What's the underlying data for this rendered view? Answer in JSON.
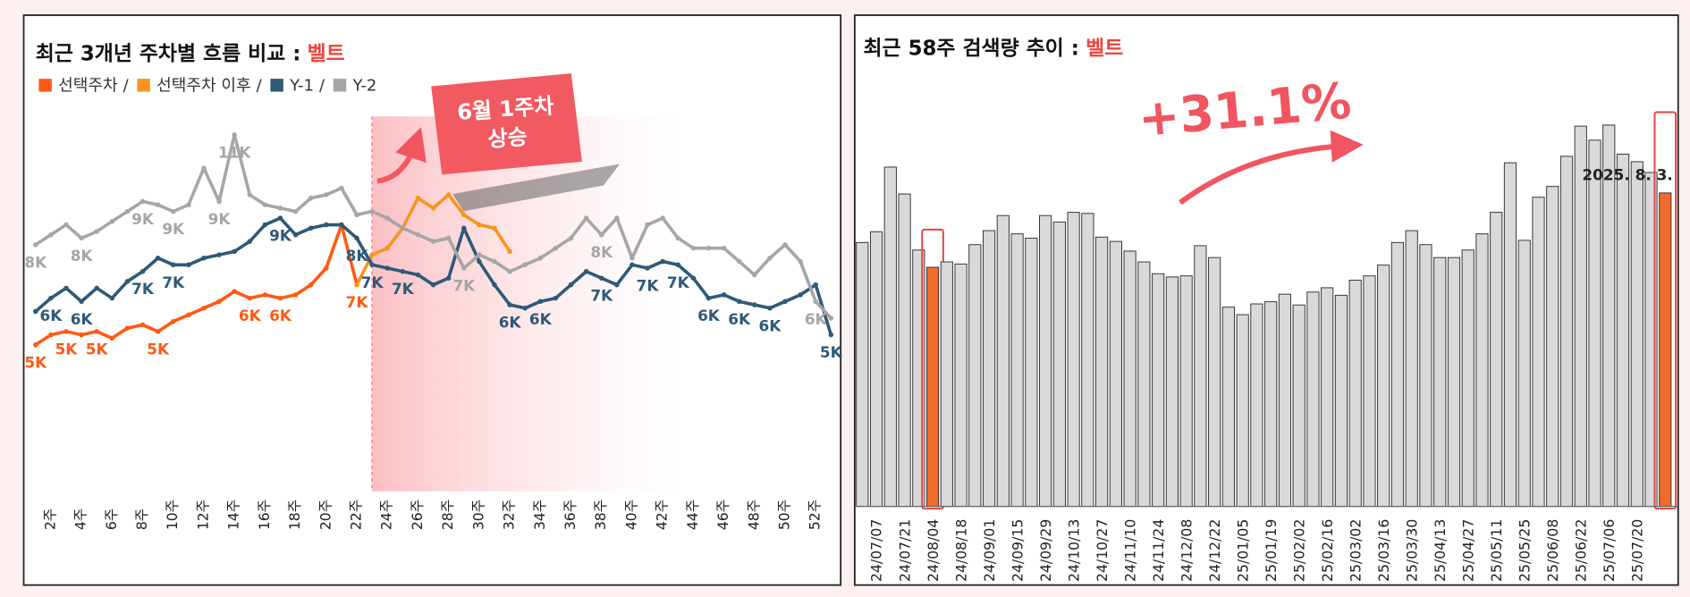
{
  "chart_data": [
    {
      "type": "line",
      "title": "최근 3개년 주차별 흐름 비교 :",
      "keyword": "벨트",
      "legend_separator": "/",
      "categories": [
        null,
        "2주",
        null,
        "4주",
        null,
        "6주",
        null,
        "8주",
        null,
        "10주",
        null,
        "12주",
        null,
        "14주",
        null,
        "16주",
        null,
        "18주",
        null,
        "20주",
        null,
        "22주",
        null,
        "24주",
        null,
        "26주",
        null,
        "28주",
        null,
        "30주",
        null,
        "32주",
        null,
        "34주",
        null,
        "36주",
        null,
        "38주",
        null,
        "40주",
        null,
        "42주",
        null,
        "44주",
        null,
        "46주",
        null,
        "48주",
        null,
        "50주",
        null,
        "52주",
        null
      ],
      "series": [
        {
          "name": "선택주차",
          "color": "#ff5a14",
          "values": [
            5000,
            5300,
            5400,
            5300,
            5400,
            5200,
            5500,
            5600,
            5400,
            5700,
            5900,
            6100,
            6300,
            6600,
            6400,
            6500,
            6400,
            6500,
            6800,
            7300,
            8600,
            6800,
            null,
            null,
            null,
            null,
            null,
            null,
            null,
            null,
            null,
            null,
            null,
            null,
            null,
            null,
            null,
            null,
            null,
            null,
            null,
            null,
            null,
            null,
            null,
            null,
            null,
            null,
            null,
            null,
            null,
            null,
            null
          ],
          "value_labels": [
            "5K",
            null,
            "5K",
            null,
            "5K",
            null,
            null,
            null,
            "5K",
            null,
            null,
            null,
            null,
            null,
            "6K",
            null,
            "6K",
            null,
            null,
            null,
            null,
            "7K",
            null,
            null,
            null,
            null,
            null,
            null,
            null,
            null,
            null,
            null,
            null,
            null,
            null,
            null,
            null,
            null,
            null,
            null,
            null,
            null,
            null,
            null,
            null,
            null,
            null,
            null,
            null,
            null,
            null,
            null,
            null
          ]
        },
        {
          "name": "선택주차 이후",
          "color": "#f7941d",
          "values": [
            null,
            null,
            null,
            null,
            null,
            null,
            null,
            null,
            null,
            null,
            null,
            null,
            null,
            null,
            null,
            null,
            null,
            null,
            null,
            null,
            null,
            6800,
            7700,
            7900,
            8500,
            9400,
            9100,
            9500,
            8900,
            8600,
            8500,
            7800,
            null,
            null,
            null,
            null,
            null,
            null,
            null,
            null,
            null,
            null,
            null,
            null,
            null,
            null,
            null,
            null,
            null,
            null,
            null,
            null,
            null
          ]
        },
        {
          "name": "Y-1",
          "color": "#2d5a78",
          "values": [
            6000,
            6400,
            6700,
            6300,
            6700,
            6400,
            6900,
            7200,
            7600,
            7400,
            7400,
            7600,
            7700,
            7800,
            8100,
            8600,
            8800,
            8300,
            8500,
            8600,
            8600,
            8200,
            7400,
            7300,
            7200,
            7100,
            6800,
            7000,
            8500,
            7500,
            6800,
            6200,
            6100,
            6300,
            6400,
            6800,
            7200,
            7000,
            6800,
            7400,
            7300,
            7500,
            7400,
            7000,
            6400,
            6500,
            6300,
            6200,
            6100,
            6300,
            6500,
            6800,
            5300
          ],
          "value_labels": [
            null,
            "6K",
            null,
            "6K",
            null,
            null,
            null,
            "7K",
            null,
            "7K",
            null,
            null,
            null,
            null,
            null,
            null,
            "9K",
            null,
            null,
            null,
            null,
            "8K",
            "7K",
            null,
            "7K",
            null,
            null,
            null,
            null,
            null,
            null,
            "6K",
            null,
            "6K",
            null,
            null,
            null,
            "7K",
            null,
            null,
            "7K",
            null,
            "7K",
            null,
            "6K",
            null,
            "6K",
            null,
            "6K",
            null,
            null,
            null,
            "5K"
          ]
        },
        {
          "name": "Y-2",
          "color": "#a6a6a6",
          "values": [
            8000,
            8300,
            8600,
            8200,
            8400,
            8700,
            9000,
            9300,
            9200,
            9000,
            9200,
            10300,
            9300,
            11300,
            9500,
            9200,
            9100,
            9000,
            9400,
            9500,
            9700,
            8900,
            9000,
            8800,
            8500,
            8300,
            8100,
            8200,
            7300,
            7700,
            7500,
            7200,
            7400,
            7600,
            7900,
            8200,
            8800,
            8300,
            8800,
            7600,
            8600,
            8800,
            8200,
            7900,
            7900,
            7900,
            7500,
            7100,
            7600,
            8000,
            7500,
            6300,
            5800
          ],
          "value_labels": [
            "8K",
            null,
            null,
            "8K",
            null,
            null,
            null,
            "9K",
            null,
            "9K",
            null,
            null,
            "9K",
            "11K",
            null,
            null,
            null,
            null,
            null,
            null,
            null,
            null,
            null,
            null,
            null,
            null,
            null,
            null,
            "7K",
            null,
            null,
            null,
            null,
            null,
            null,
            null,
            null,
            "8K",
            null,
            null,
            null,
            null,
            null,
            null,
            null,
            null,
            null,
            null,
            null,
            null,
            null,
            "6K",
            null
          ]
        }
      ],
      "annotation": [
        "6월 1주차",
        "상승"
      ]
    },
    {
      "type": "bar",
      "title": "최근 58주 검색량 추이 :",
      "keyword": "벨트",
      "categories": [
        null,
        "24/07/07",
        null,
        "24/07/21",
        null,
        "24/08/04",
        null,
        "24/08/18",
        null,
        "24/09/01",
        null,
        "24/09/15",
        null,
        "24/09/29",
        null,
        "24/10/13",
        null,
        "24/10/27",
        null,
        "24/11/10",
        null,
        "24/11/24",
        null,
        "24/12/08",
        null,
        "24/12/22",
        null,
        "25/01/05",
        null,
        "25/01/19",
        null,
        "25/02/02",
        null,
        "25/02/16",
        null,
        "25/03/02",
        null,
        "25/03/16",
        null,
        "25/03/30",
        null,
        "25/04/13",
        null,
        "25/04/27",
        null,
        "25/05/11",
        null,
        "25/05/25",
        null,
        "25/06/08",
        null,
        "25/06/22",
        null,
        "25/07/06",
        null,
        "25/07/20",
        null,
        null
      ],
      "values": [
        245,
        255,
        315,
        290,
        238,
        222,
        227,
        225,
        243,
        256,
        270,
        253,
        249,
        270,
        264,
        273,
        272,
        250,
        246,
        237,
        227,
        216,
        213,
        214,
        242,
        231,
        185,
        178,
        188,
        190,
        197,
        187,
        199,
        203,
        196,
        210,
        214,
        224,
        245,
        256,
        243,
        231,
        231,
        238,
        253,
        273,
        319,
        247,
        287,
        297,
        325,
        353,
        340,
        354,
        327,
        320,
        310,
        291
      ],
      "color": "#d9d9d9",
      "highlight_color": "#f26b2a",
      "highlight_index": [
        5,
        57
      ],
      "annotations": [
        "+31.1%",
        "2025. 8. 3."
      ]
    }
  ]
}
